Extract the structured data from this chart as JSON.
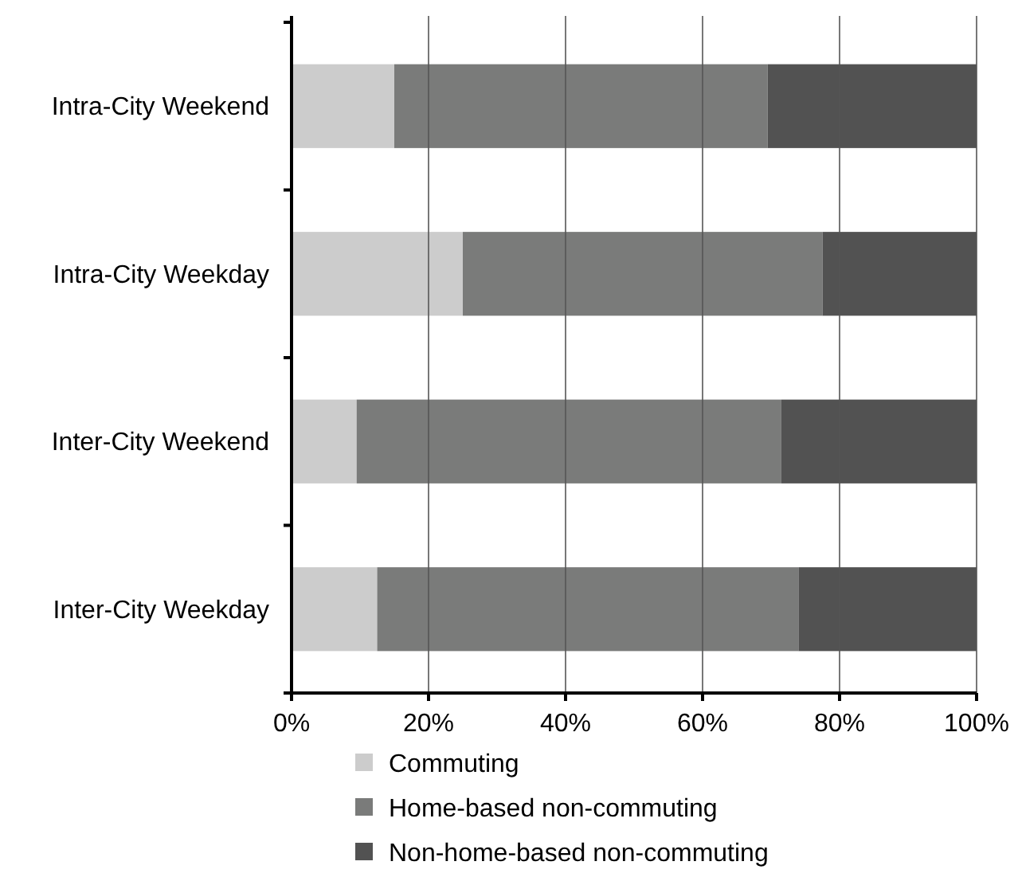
{
  "chart_data": {
    "type": "bar",
    "orientation": "horizontal",
    "stacked": true,
    "categories": [
      "Intra-City Weekend",
      "Intra-City Weekday",
      "Inter-City Weekend",
      "Inter-City Weekday"
    ],
    "series": [
      {
        "name": "Commuting",
        "color": "#cccccc",
        "values": [
          15,
          25,
          9.5,
          12.5
        ]
      },
      {
        "name": "Home-based non-commuting",
        "color": "#7a7b7a",
        "values": [
          54.5,
          52.5,
          62,
          61.5
        ]
      },
      {
        "name": "Non-home-based non-commuting",
        "color": "#525252",
        "values": [
          30.5,
          22.5,
          28.5,
          26
        ]
      }
    ],
    "xlim": [
      0,
      100
    ],
    "xticks": [
      {
        "value": 0,
        "label": "0%"
      },
      {
        "value": 20,
        "label": "20%"
      },
      {
        "value": 40,
        "label": "40%"
      },
      {
        "value": 60,
        "label": "60%"
      },
      {
        "value": 80,
        "label": "80%"
      },
      {
        "value": 100,
        "label": "100%"
      }
    ],
    "grid": "x",
    "legend": "bottom"
  }
}
